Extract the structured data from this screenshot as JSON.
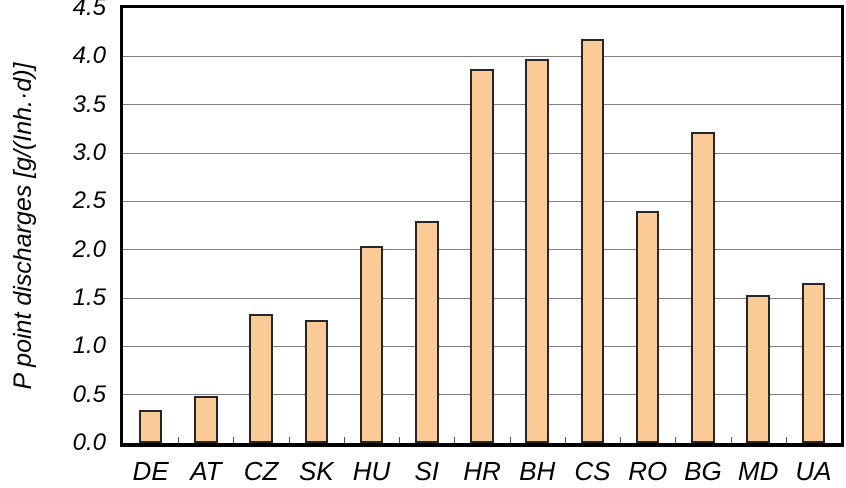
{
  "chart_data": {
    "type": "bar",
    "title": "",
    "xlabel": "",
    "ylabel": "P point discharges [g/(Inh.·d)]",
    "categories": [
      "DE",
      "AT",
      "CZ",
      "SK",
      "HU",
      "SI",
      "HR",
      "BH",
      "CS",
      "RO",
      "BG",
      "MD",
      "UA"
    ],
    "values": [
      0.34,
      0.49,
      1.33,
      1.27,
      2.04,
      2.3,
      3.87,
      3.97,
      4.18,
      2.4,
      3.22,
      1.53,
      1.66
    ],
    "ylim": [
      0,
      4.5
    ],
    "ytick_step": 0.5,
    "ytick_labels": [
      "0.0",
      "0.5",
      "1.0",
      "1.5",
      "2.0",
      "2.5",
      "3.0",
      "3.5",
      "4.0",
      "4.5"
    ],
    "grid": true,
    "legend": "none",
    "bar_fill_color": "#FBCB97",
    "bar_border_color": "#262626",
    "gridline_color": "#808080",
    "axis_frame_color": "#000000",
    "text_color": "#000000"
  }
}
